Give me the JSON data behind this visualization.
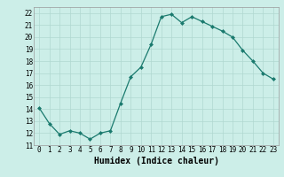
{
  "x": [
    0,
    1,
    2,
    3,
    4,
    5,
    6,
    7,
    8,
    9,
    10,
    11,
    12,
    13,
    14,
    15,
    16,
    17,
    18,
    19,
    20,
    21,
    22,
    23
  ],
  "y": [
    14.1,
    12.8,
    11.9,
    12.2,
    12.0,
    11.5,
    12.0,
    12.2,
    14.5,
    16.7,
    17.5,
    19.4,
    21.7,
    21.9,
    21.2,
    21.7,
    21.3,
    20.9,
    20.5,
    20.0,
    18.9,
    18.0,
    17.0,
    16.5
  ],
  "line_color": "#1a7a6e",
  "marker": "D",
  "marker_size": 2,
  "bg_color": "#cceee8",
  "grid_color": "#b0d8d0",
  "xlabel": "Humidex (Indice chaleur)",
  "ylim": [
    11,
    22.5
  ],
  "xlim": [
    -0.5,
    23.5
  ],
  "yticks": [
    11,
    12,
    13,
    14,
    15,
    16,
    17,
    18,
    19,
    20,
    21,
    22
  ],
  "xticks": [
    0,
    1,
    2,
    3,
    4,
    5,
    6,
    7,
    8,
    9,
    10,
    11,
    12,
    13,
    14,
    15,
    16,
    17,
    18,
    19,
    20,
    21,
    22,
    23
  ],
  "tick_fontsize": 5.5,
  "xlabel_fontsize": 7,
  "linewidth": 0.9
}
